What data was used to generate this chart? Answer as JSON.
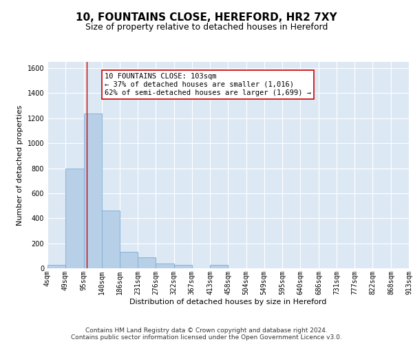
{
  "title_line1": "10, FOUNTAINS CLOSE, HEREFORD, HR2 7XY",
  "title_line2": "Size of property relative to detached houses in Hereford",
  "xlabel": "Distribution of detached houses by size in Hereford",
  "ylabel": "Number of detached properties",
  "footer_line1": "Contains HM Land Registry data © Crown copyright and database right 2024.",
  "footer_line2": "Contains public sector information licensed under the Open Government Licence v3.0.",
  "annotation_line1": "10 FOUNTAINS CLOSE: 103sqm",
  "annotation_line2": "← 37% of detached houses are smaller (1,016)",
  "annotation_line3": "62% of semi-detached houses are larger (1,699) →",
  "bar_color": "#b8cfe8",
  "bar_edge_color": "#7aadd4",
  "vline_color": "#cc0000",
  "background_color": "#dde8f5",
  "bin_edges": [
    4,
    49,
    95,
    140,
    186,
    231,
    276,
    322,
    367,
    413,
    458,
    504,
    549,
    595,
    640,
    686,
    731,
    777,
    822,
    868,
    913
  ],
  "bin_labels": [
    "4sqm",
    "49sqm",
    "95sqm",
    "140sqm",
    "186sqm",
    "231sqm",
    "276sqm",
    "322sqm",
    "367sqm",
    "413sqm",
    "458sqm",
    "504sqm",
    "549sqm",
    "595sqm",
    "640sqm",
    "686sqm",
    "731sqm",
    "777sqm",
    "822sqm",
    "868sqm",
    "913sqm"
  ],
  "bar_heights": [
    30,
    800,
    1240,
    460,
    130,
    90,
    40,
    30,
    0,
    30,
    0,
    0,
    0,
    0,
    0,
    0,
    0,
    0,
    0,
    0
  ],
  "vline_x": 103,
  "ylim": [
    0,
    1650
  ],
  "yticks": [
    0,
    200,
    400,
    600,
    800,
    1000,
    1200,
    1400,
    1600
  ],
  "title_fontsize": 11,
  "subtitle_fontsize": 9,
  "axis_label_fontsize": 8,
  "tick_fontsize": 7,
  "annotation_fontsize": 7.5,
  "footer_fontsize": 6.5
}
